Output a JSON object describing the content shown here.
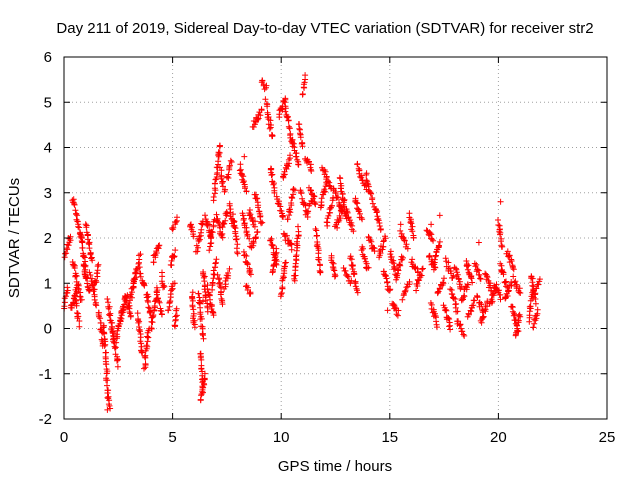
{
  "chart_data": {
    "type": "scatter",
    "title": "Day 211 of 2019, Sidereal Day-to-day VTEC variation (SDTVAR) for receiver str2",
    "xlabel": "GPS time / hours",
    "ylabel": "SDTVAR / TECUs",
    "xlim": [
      0,
      25
    ],
    "ylim": [
      -2,
      6
    ],
    "xticks": [
      0,
      5,
      10,
      15,
      20,
      25
    ],
    "yticks": [
      -2,
      -1,
      0,
      1,
      2,
      3,
      4,
      5,
      6
    ],
    "xtick_labels": [
      "0",
      "5",
      "10",
      "15",
      "20",
      "25"
    ],
    "ytick_labels": [
      "-2",
      "-1",
      "0",
      "1",
      "2",
      "3",
      "4",
      "5",
      "6"
    ],
    "grid": true,
    "marker": "+",
    "series_color": "#ff0000",
    "segments": [
      [
        0.0,
        0.5,
        0.2,
        0.9
      ],
      [
        0.05,
        1.6,
        0.3,
        2.0
      ],
      [
        0.3,
        0.4,
        0.6,
        0.9
      ],
      [
        0.4,
        2.9,
        0.8,
        2.0
      ],
      [
        0.4,
        1.5,
        0.8,
        0.6
      ],
      [
        0.5,
        0.7,
        0.7,
        0.1
      ],
      [
        0.8,
        2.1,
        1.0,
        1.2
      ],
      [
        0.9,
        1.4,
        1.2,
        0.8
      ],
      [
        1.0,
        2.3,
        1.3,
        1.5
      ],
      [
        1.2,
        1.2,
        1.5,
        0.5
      ],
      [
        1.4,
        0.9,
        1.6,
        1.4
      ],
      [
        1.6,
        0.4,
        1.8,
        -0.4
      ],
      [
        1.8,
        0.1,
        2.0,
        -1.0
      ],
      [
        1.95,
        -1.1,
        2.1,
        -1.8
      ],
      [
        2.0,
        0.6,
        2.3,
        -0.2
      ],
      [
        2.2,
        0.0,
        2.5,
        -0.8
      ],
      [
        2.4,
        -0.3,
        2.7,
        0.5
      ],
      [
        2.6,
        0.2,
        2.9,
        0.8
      ],
      [
        2.8,
        0.7,
        3.1,
        0.3
      ],
      [
        3.0,
        0.5,
        3.3,
        1.2
      ],
      [
        3.2,
        1.0,
        3.5,
        1.6
      ],
      [
        3.4,
        0.3,
        3.6,
        -0.6
      ],
      [
        3.5,
        1.3,
        3.7,
        0.9
      ],
      [
        3.7,
        -0.9,
        3.9,
        0.0
      ],
      [
        3.8,
        0.8,
        4.0,
        0.3
      ],
      [
        4.0,
        0.0,
        4.3,
        0.9
      ],
      [
        4.1,
        1.5,
        4.4,
        1.9
      ],
      [
        4.3,
        0.7,
        4.5,
        0.3
      ],
      [
        4.5,
        1.2,
        4.6,
        0.9
      ],
      [
        4.8,
        0.4,
        5.0,
        1.0
      ],
      [
        4.9,
        1.4,
        5.1,
        1.7
      ],
      [
        5.0,
        2.2,
        5.2,
        2.4
      ],
      [
        5.1,
        0.0,
        5.2,
        0.4
      ],
      [
        5.8,
        2.3,
        6.0,
        2.1
      ],
      [
        5.9,
        0.8,
        6.0,
        0.0
      ],
      [
        6.1,
        1.7,
        6.4,
        2.4
      ],
      [
        6.2,
        0.8,
        6.4,
        -0.2
      ],
      [
        6.3,
        -0.5,
        6.4,
        -1.4
      ],
      [
        6.3,
        -1.6,
        6.5,
        -1.0
      ],
      [
        6.4,
        1.3,
        6.6,
        0.4
      ],
      [
        6.5,
        2.5,
        6.8,
        2.0
      ],
      [
        6.6,
        0.9,
        6.9,
        0.3
      ],
      [
        6.7,
        1.8,
        6.9,
        2.4
      ],
      [
        6.8,
        0.9,
        7.0,
        1.5
      ],
      [
        6.9,
        2.9,
        7.2,
        4.1
      ],
      [
        7.0,
        2.5,
        7.3,
        2.0
      ],
      [
        7.1,
        1.2,
        7.3,
        0.5
      ],
      [
        7.2,
        3.5,
        7.4,
        3.0
      ],
      [
        7.3,
        2.2,
        7.5,
        2.6
      ],
      [
        7.4,
        0.9,
        7.6,
        1.3
      ],
      [
        7.5,
        3.3,
        7.7,
        3.7
      ],
      [
        7.6,
        2.7,
        7.8,
        2.3
      ],
      [
        7.8,
        2.5,
        8.0,
        1.7
      ],
      [
        8.1,
        3.6,
        8.4,
        3.0
      ],
      [
        8.2,
        2.5,
        8.5,
        2.0
      ],
      [
        8.3,
        1.7,
        8.6,
        1.2
      ],
      [
        8.4,
        0.9,
        8.6,
        0.8
      ],
      [
        8.5,
        2.6,
        8.8,
        2.3
      ],
      [
        8.6,
        1.8,
        8.9,
        2.1
      ],
      [
        8.7,
        4.5,
        9.1,
        4.8
      ],
      [
        8.8,
        3.0,
        9.1,
        2.3
      ],
      [
        9.1,
        5.5,
        9.3,
        5.3
      ],
      [
        9.3,
        5.0,
        9.6,
        4.2
      ],
      [
        9.5,
        3.6,
        9.7,
        3.0
      ],
      [
        9.5,
        2.0,
        9.8,
        1.4
      ],
      [
        9.6,
        1.2,
        9.8,
        1.7
      ],
      [
        9.8,
        2.9,
        10.1,
        2.4
      ],
      [
        9.9,
        4.7,
        10.2,
        5.1
      ],
      [
        10.0,
        0.7,
        10.2,
        1.5
      ],
      [
        10.1,
        3.3,
        10.4,
        3.8
      ],
      [
        10.1,
        2.1,
        10.5,
        1.8
      ],
      [
        10.2,
        4.9,
        10.5,
        4.1
      ],
      [
        10.3,
        2.4,
        10.6,
        3.1
      ],
      [
        10.5,
        4.2,
        10.8,
        3.6
      ],
      [
        10.6,
        1.0,
        10.8,
        2.2
      ],
      [
        10.8,
        4.5,
        11.0,
        4.0
      ],
      [
        10.9,
        3.0,
        11.2,
        2.5
      ],
      [
        11.0,
        5.2,
        11.1,
        5.5
      ],
      [
        11.1,
        3.8,
        11.4,
        3.5
      ],
      [
        11.2,
        2.6,
        11.5,
        2.9
      ],
      [
        11.3,
        3.1,
        11.6,
        2.8
      ],
      [
        11.6,
        2.2,
        11.8,
        1.2
      ],
      [
        11.8,
        2.7,
        12.1,
        3.2
      ],
      [
        11.9,
        3.6,
        12.3,
        3.1
      ],
      [
        12.1,
        2.3,
        12.4,
        2.9
      ],
      [
        12.3,
        1.6,
        12.5,
        1.1
      ],
      [
        12.4,
        3.1,
        12.8,
        2.6
      ],
      [
        12.5,
        2.2,
        12.9,
        2.8
      ],
      [
        12.7,
        3.3,
        13.0,
        2.4
      ],
      [
        12.9,
        1.3,
        13.2,
        1.0
      ],
      [
        13.0,
        2.6,
        13.3,
        2.2
      ],
      [
        13.2,
        1.6,
        13.5,
        0.8
      ],
      [
        13.4,
        2.9,
        13.7,
        2.4
      ],
      [
        13.5,
        3.6,
        13.9,
        3.1
      ],
      [
        13.7,
        1.8,
        14.0,
        1.3
      ],
      [
        13.9,
        3.4,
        14.2,
        2.8
      ],
      [
        14.0,
        2.0,
        14.3,
        1.7
      ],
      [
        14.3,
        2.7,
        14.6,
        2.2
      ],
      [
        14.5,
        1.6,
        14.8,
        2.0
      ],
      [
        14.7,
        1.3,
        15.0,
        0.8
      ],
      [
        15.0,
        1.7,
        15.3,
        1.2
      ],
      [
        15.1,
        0.6,
        15.4,
        0.3
      ],
      [
        15.3,
        1.1,
        15.6,
        1.6
      ],
      [
        15.5,
        2.1,
        15.8,
        1.8
      ],
      [
        15.6,
        0.7,
        15.9,
        1.0
      ],
      [
        15.9,
        2.5,
        16.1,
        2.0
      ],
      [
        16.0,
        1.5,
        16.3,
        1.2
      ],
      [
        16.2,
        0.9,
        16.5,
        1.3
      ],
      [
        16.7,
        2.1,
        17.0,
        2.0
      ],
      [
        16.8,
        1.6,
        17.1,
        1.3
      ],
      [
        16.9,
        0.5,
        17.2,
        0.1
      ],
      [
        17.0,
        1.4,
        17.3,
        1.9
      ],
      [
        17.2,
        0.8,
        17.5,
        1.1
      ],
      [
        17.5,
        0.5,
        17.8,
        0.0
      ],
      [
        17.6,
        1.5,
        17.9,
        1.1
      ],
      [
        17.8,
        0.9,
        18.1,
        0.4
      ],
      [
        18.0,
        1.3,
        18.3,
        0.9
      ],
      [
        18.1,
        0.2,
        18.4,
        -0.1
      ],
      [
        18.3,
        0.6,
        18.6,
        1.0
      ],
      [
        18.5,
        1.5,
        18.8,
        1.0
      ],
      [
        18.6,
        0.3,
        18.9,
        0.6
      ],
      [
        18.9,
        1.4,
        19.2,
        1.1
      ],
      [
        19.0,
        0.7,
        19.3,
        0.4
      ],
      [
        19.2,
        0.1,
        19.5,
        0.6
      ],
      [
        19.4,
        1.2,
        19.7,
        0.8
      ],
      [
        19.6,
        0.5,
        19.9,
        0.9
      ],
      [
        19.8,
        1.0,
        20.1,
        0.7
      ],
      [
        20.0,
        2.4,
        20.2,
        1.8
      ],
      [
        20.1,
        1.4,
        20.4,
        0.9
      ],
      [
        20.3,
        0.6,
        20.6,
        1.0
      ],
      [
        20.4,
        1.7,
        20.7,
        1.3
      ],
      [
        20.6,
        0.5,
        20.9,
        0.0
      ],
      [
        20.7,
        1.1,
        21.0,
        0.8
      ],
      [
        20.8,
        -0.2,
        21.0,
        0.3
      ],
      [
        21.4,
        0.2,
        21.6,
        0.9
      ],
      [
        21.5,
        1.2,
        21.7,
        0.6
      ],
      [
        21.6,
        0.0,
        21.8,
        0.4
      ],
      [
        21.7,
        0.8,
        21.9,
        1.1
      ]
    ],
    "isolated_points": [
      [
        20.1,
        2.8
      ],
      [
        17.3,
        2.5
      ],
      [
        16.9,
        2.3
      ],
      [
        15.5,
        2.3
      ],
      [
        8.3,
        3.8
      ],
      [
        11.1,
        5.6
      ],
      [
        6.4,
        0.6
      ],
      [
        5.1,
        1.0
      ],
      [
        0.2,
        2.0
      ],
      [
        2.0,
        -1.8
      ],
      [
        13.3,
        1.4
      ],
      [
        19.1,
        1.9
      ],
      [
        14.9,
        0.4
      ]
    ]
  }
}
